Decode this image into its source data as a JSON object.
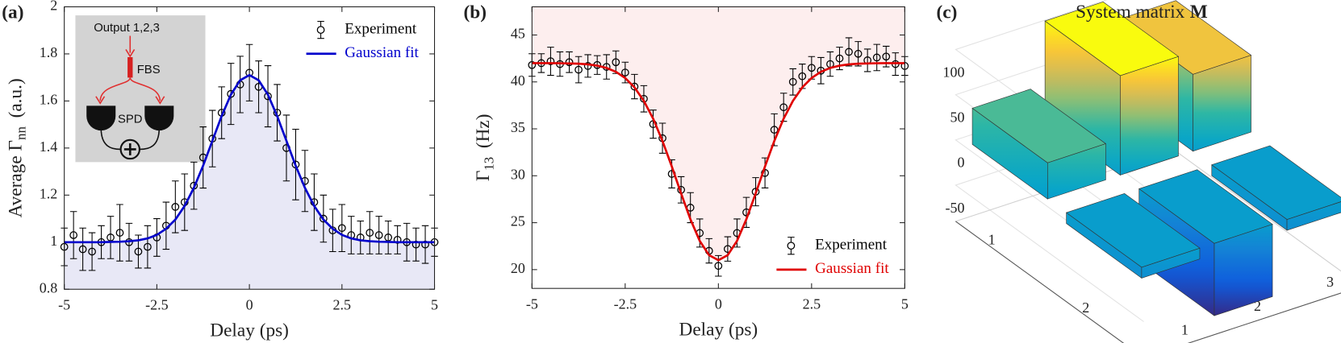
{
  "chart_data": [
    {
      "type": "line",
      "panel_label": "(a)",
      "x_label": "Delay (ps)",
      "y_label": "Average Γ",
      "y_label_sub": "nn",
      "y_label_unit": "(a.u.)",
      "x": [
        -5,
        -4.75,
        -4.5,
        -4.25,
        -4,
        -3.75,
        -3.5,
        -3.25,
        -3,
        -2.75,
        -2.5,
        -2.25,
        -2,
        -1.75,
        -1.5,
        -1.25,
        -1,
        -0.75,
        -0.5,
        -0.25,
        0,
        0.25,
        0.5,
        0.75,
        1,
        1.25,
        1.5,
        1.75,
        2,
        2.25,
        2.5,
        2.75,
        3,
        3.25,
        3.5,
        3.75,
        4,
        4.25,
        4.5,
        4.75,
        5
      ],
      "series": [
        {
          "name": "Experiment",
          "color": "#000000",
          "marker": "circle",
          "values": [
            0.98,
            1.03,
            0.97,
            0.96,
            1.0,
            1.02,
            1.04,
            1.0,
            0.96,
            0.98,
            1.02,
            1.07,
            1.15,
            1.17,
            1.24,
            1.36,
            1.44,
            1.55,
            1.63,
            1.67,
            1.72,
            1.66,
            1.62,
            1.55,
            1.4,
            1.33,
            1.26,
            1.17,
            1.1,
            1.05,
            1.06,
            1.03,
            1.02,
            1.04,
            1.03,
            1.02,
            1.01,
            1.0,
            0.99,
            0.99,
            1.0
          ],
          "errors": [
            0.08,
            0.1,
            0.09,
            0.08,
            0.07,
            0.09,
            0.12,
            0.08,
            0.07,
            0.09,
            0.08,
            0.1,
            0.11,
            0.12,
            0.1,
            0.13,
            0.12,
            0.11,
            0.13,
            0.12,
            0.12,
            0.11,
            0.13,
            0.12,
            0.14,
            0.15,
            0.13,
            0.12,
            0.1,
            0.09,
            0.1,
            0.08,
            0.07,
            0.09,
            0.08,
            0.07,
            0.06,
            0.08,
            0.07,
            0.08,
            0.06
          ]
        },
        {
          "name": "Gaussian fit",
          "color": "#0000cc",
          "values": [
            1.0,
            1.0,
            1.0,
            1.0,
            1.0,
            1.001,
            1.002,
            1.004,
            1.008,
            1.016,
            1.031,
            1.057,
            1.096,
            1.154,
            1.231,
            1.325,
            1.431,
            1.536,
            1.627,
            1.688,
            1.71,
            1.688,
            1.627,
            1.536,
            1.431,
            1.325,
            1.231,
            1.154,
            1.096,
            1.057,
            1.031,
            1.016,
            1.008,
            1.004,
            1.002,
            1.001,
            1.0,
            1.0,
            1.0,
            1.0,
            1.0
          ]
        }
      ],
      "xlim": [
        -5,
        5
      ],
      "xticks": [
        -5,
        -2.5,
        0,
        2.5,
        5
      ],
      "ylim": [
        0.8,
        2
      ],
      "yticks": [
        0.8,
        1,
        1.2,
        1.4,
        1.6,
        1.8,
        2
      ],
      "fill": {
        "color": "#e8e8f6",
        "to": "bottom"
      },
      "legend": "upper right",
      "inset_labels": [
        "Output 1,2,3",
        "FBS",
        "SPD"
      ]
    },
    {
      "type": "line",
      "panel_label": "(b)",
      "x_label": "Delay (ps)",
      "y_label": "Γ",
      "y_label_sub": "13",
      "y_label_unit": "(Hz)",
      "x": [
        -5,
        -4.75,
        -4.5,
        -4.25,
        -4,
        -3.75,
        -3.5,
        -3.25,
        -3,
        -2.75,
        -2.5,
        -2.25,
        -2,
        -1.75,
        -1.5,
        -1.25,
        -1,
        -0.75,
        -0.5,
        -0.25,
        0,
        0.25,
        0.5,
        0.75,
        1,
        1.25,
        1.5,
        1.75,
        2,
        2.25,
        2.5,
        2.75,
        3,
        3.25,
        3.5,
        3.75,
        4,
        4.25,
        4.5,
        4.75,
        5
      ],
      "series": [
        {
          "name": "Experiment",
          "color": "#000000",
          "marker": "circle",
          "values": [
            41.8,
            42.0,
            42.2,
            41.9,
            42.1,
            41.3,
            41.7,
            41.8,
            41.6,
            42.1,
            41.0,
            39.5,
            38.2,
            35.5,
            34.0,
            30.2,
            28.5,
            26.6,
            23.9,
            22.0,
            20.4,
            22.2,
            23.9,
            26.1,
            28.3,
            30.3,
            34.9,
            37.3,
            40.0,
            40.6,
            41.5,
            41.2,
            41.9,
            42.5,
            43.2,
            43.0,
            42.3,
            42.6,
            42.7,
            41.9,
            41.7
          ],
          "errors": [
            1.2,
            1.0,
            1.5,
            1.3,
            1.1,
            1.4,
            1.2,
            1.0,
            1.3,
            1.2,
            1.1,
            1.3,
            1.4,
            1.5,
            1.6,
            1.5,
            1.4,
            1.6,
            1.5,
            1.3,
            1.1,
            1.3,
            1.5,
            1.6,
            1.5,
            1.6,
            1.7,
            1.5,
            1.4,
            1.3,
            1.2,
            1.4,
            1.3,
            1.2,
            1.5,
            1.3,
            1.2,
            1.4,
            1.1,
            1.2,
            1.0
          ]
        },
        {
          "name": "Gaussian fit",
          "color": "#e00000",
          "values": [
            42.0,
            42.0,
            42.0,
            41.99,
            41.97,
            41.94,
            41.87,
            41.73,
            41.49,
            41.08,
            40.41,
            39.41,
            37.98,
            36.08,
            33.71,
            30.99,
            28.11,
            25.36,
            23.06,
            21.54,
            21.0,
            21.54,
            23.06,
            25.36,
            28.11,
            30.99,
            33.71,
            36.08,
            37.98,
            39.41,
            40.41,
            41.08,
            41.49,
            41.73,
            41.87,
            41.94,
            41.97,
            41.99,
            42.0,
            42.0,
            42.0
          ]
        }
      ],
      "xlim": [
        -5,
        5
      ],
      "xticks": [
        -5,
        -2.5,
        0,
        2.5,
        5
      ],
      "ylim": [
        18,
        48
      ],
      "yticks": [
        20,
        25,
        30,
        35,
        40,
        45
      ],
      "fill": {
        "color": "#fdeeee",
        "to": "top"
      },
      "legend": "lower right"
    },
    {
      "type": "bar3d",
      "panel_label": "(c)",
      "title": "System matrix",
      "title_bold": "M",
      "z": [
        [
          40,
          110,
          85
        ],
        [
          -12,
          -80,
          -12
        ]
      ],
      "xticks": [
        1,
        2,
        3
      ],
      "yticks": [
        1,
        2
      ],
      "zticks": [
        -50,
        0,
        50,
        100
      ],
      "zlim": [
        -90,
        115
      ],
      "colormap": "parula"
    }
  ]
}
